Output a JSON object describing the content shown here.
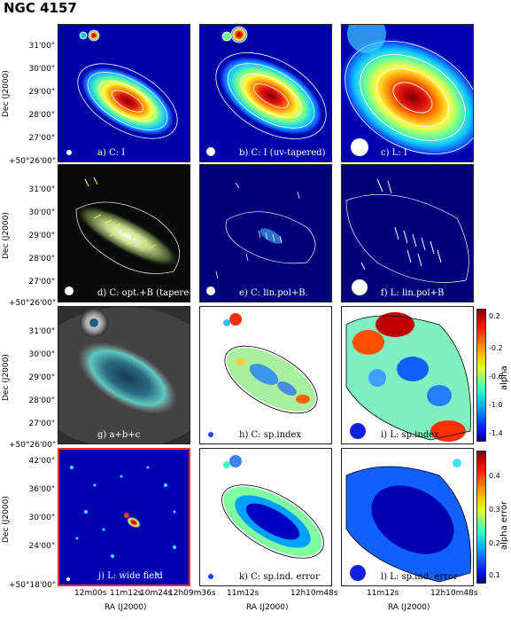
{
  "figure": {
    "title": "NGC 4157"
  },
  "panels": {
    "a": "a) C: I",
    "b": "b) C: I (uv-tapered)",
    "c": "c) L: I",
    "d": "d) C: opt.+B (tapered)",
    "e": "e) C: lin.pol+B.",
    "f": "f) L: lin.pol+B",
    "g": "g) a+b+c",
    "h": "h) C: sp.index",
    "i": "i) L: sp.index",
    "j": "j) L: wide field",
    "k": "k) C: sp.ind. error",
    "l": "l) L: sp.ind. error"
  },
  "axes": {
    "dec_label": "Dec (J2000)",
    "ra_label": "RA (J2000)",
    "dec_ticks": [
      "31'00\"",
      "30'00\"",
      "29'00\"",
      "28'00\"",
      "27'00\"",
      "+50°26'00\""
    ],
    "dec_ticks_wide": [
      "42'00\"",
      "36'00\"",
      "30'00\"",
      "24'00\"",
      "+50°18'00\""
    ],
    "ra_ticks_col1": [
      "12m00s",
      "11m12s",
      "10m24s",
      "12h09m36s"
    ],
    "ra_ticks_col2": [
      "11m12s",
      "12h10m48s"
    ],
    "ra_ticks_col3": [
      "11m12s",
      "12h10m48s"
    ]
  },
  "colorbars": {
    "alpha": {
      "label": "alpha",
      "ticks": [
        "0.2",
        "-0.2",
        "-0.6",
        "-1.0",
        "-1.4"
      ]
    },
    "alpha_error": {
      "label": "alpha error",
      "ticks": [
        "0.4",
        "0.3",
        "0.2",
        "0.1"
      ]
    }
  },
  "colors": {
    "jet_low": "#00008f",
    "jet_mid": "#7fff7f",
    "jet_high": "#800000",
    "wide_field_frame": "#e03030"
  }
}
